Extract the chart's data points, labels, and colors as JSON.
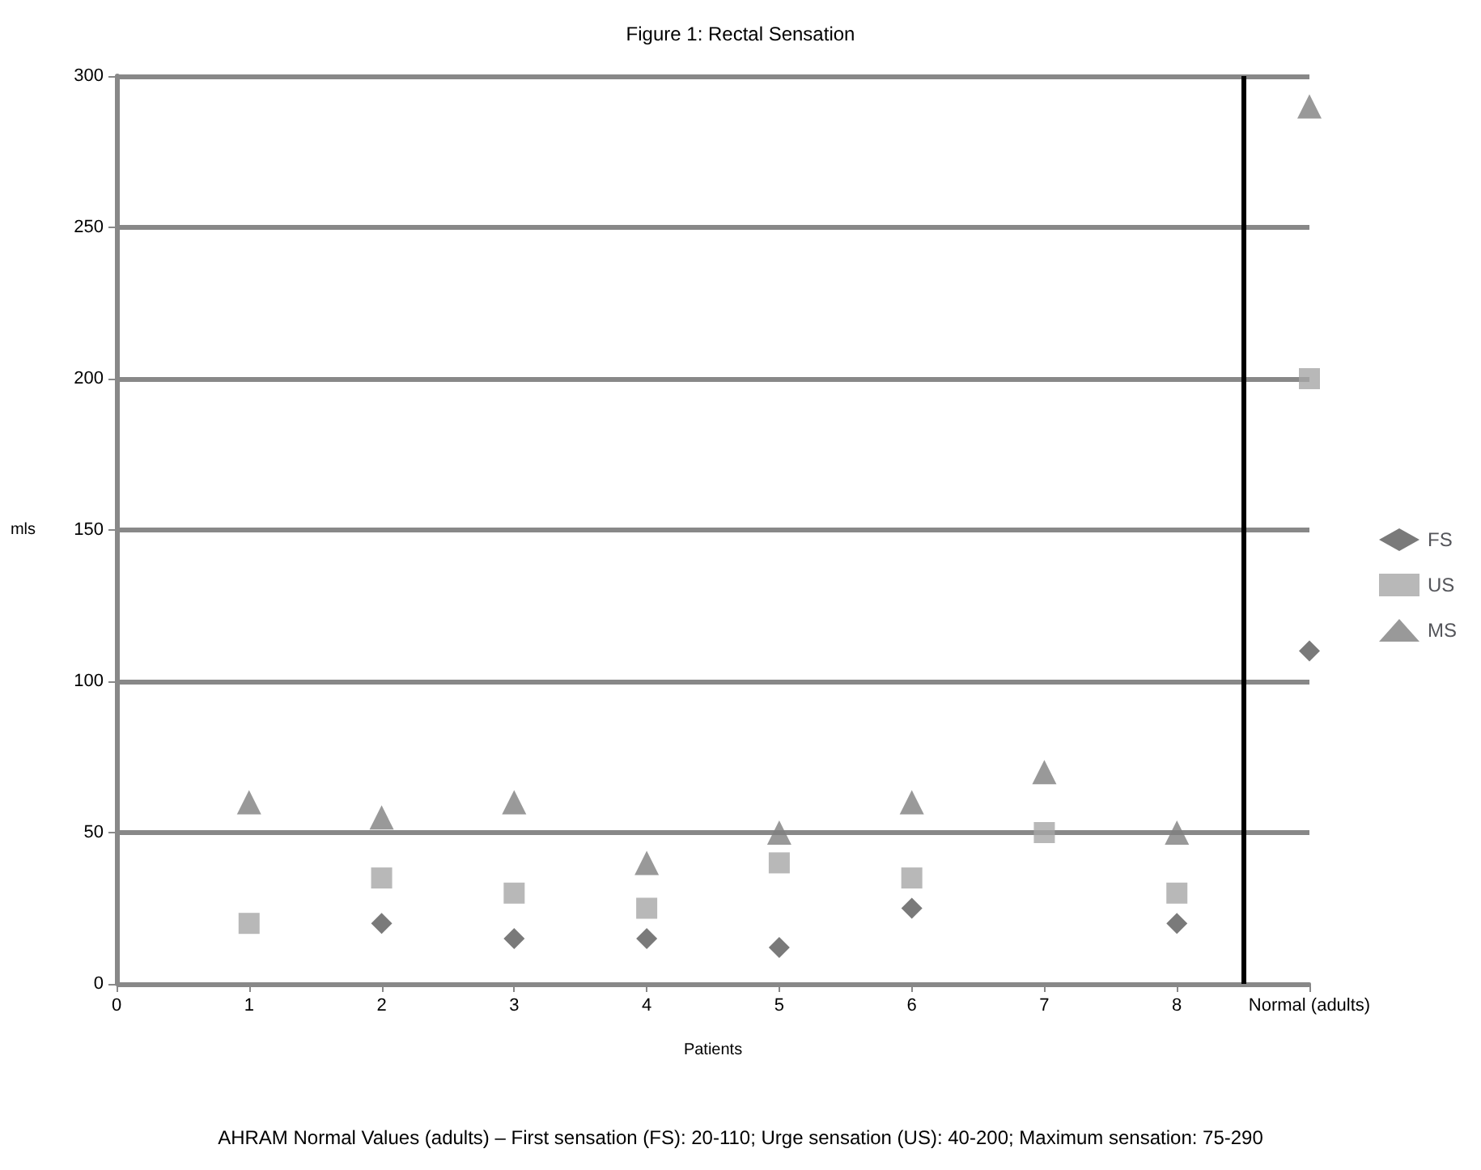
{
  "chart_data": {
    "type": "scatter",
    "title": "Figure 1: Rectal Sensation",
    "xlabel": "Patients",
    "ylabel": "mls",
    "x": [
      1,
      2,
      3,
      4,
      5,
      6,
      7,
      8,
      9
    ],
    "series": [
      {
        "name": "FS",
        "color": "#595959",
        "marker": "diamond",
        "values": [
          null,
          20,
          15,
          15,
          12,
          25,
          null,
          20,
          110
        ]
      },
      {
        "name": "US",
        "color": "#a6a6a6",
        "marker": "square",
        "values": [
          20,
          35,
          30,
          25,
          40,
          35,
          50,
          30,
          200
        ]
      },
      {
        "name": "MS",
        "color": "#7f7f7f",
        "marker": "triangle",
        "values": [
          60,
          55,
          60,
          40,
          50,
          60,
          70,
          50,
          290
        ]
      }
    ],
    "xlim": [
      0,
      9
    ],
    "xticks": [
      0,
      1,
      2,
      3,
      4,
      5,
      6,
      7,
      8,
      {
        "value": 9,
        "label": "Normal (adults)"
      }
    ],
    "ylim": [
      0,
      300
    ],
    "yticks": [
      0,
      50,
      100,
      150,
      200,
      250,
      300
    ],
    "grid": "y",
    "legend": "right",
    "ref_lines": [
      {
        "axis": "x",
        "value": 8.5,
        "label": null,
        "color": "#000000"
      }
    ],
    "annotations": [
      "AHRAM Normal Values (adults) – First sensation (FS): 20-110; Urge sensation (US): 40-200; Maximum sensation: 75-290"
    ]
  }
}
